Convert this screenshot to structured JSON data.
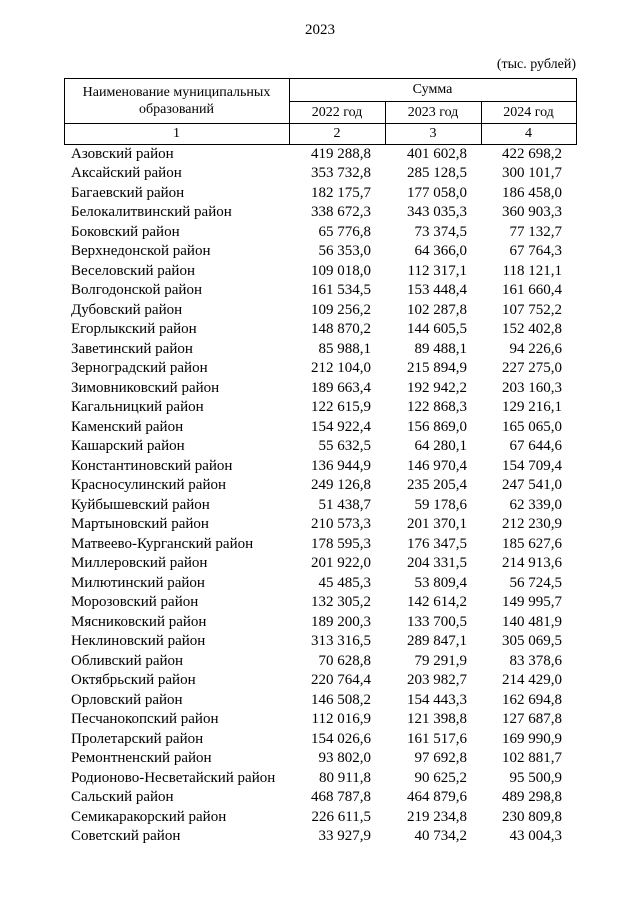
{
  "page": {
    "title": "2023",
    "units_note": "(тыс. рублей)"
  },
  "table": {
    "header": {
      "name_col": "Наименование муниципальных образований",
      "sum_col": "Сумма",
      "year_cols": [
        "2022 год",
        "2023 год",
        "2024 год"
      ],
      "index_row": [
        "1",
        "2",
        "3",
        "4"
      ]
    },
    "rows": [
      {
        "name": "Азовский район",
        "v2022": "419 288,8",
        "v2023": "401 602,8",
        "v2024": "422 698,2"
      },
      {
        "name": "Аксайский район",
        "v2022": "353 732,8",
        "v2023": "285 128,5",
        "v2024": "300 101,7"
      },
      {
        "name": "Багаевский район",
        "v2022": "182 175,7",
        "v2023": "177 058,0",
        "v2024": "186 458,0"
      },
      {
        "name": "Белокалитвинский район",
        "v2022": "338 672,3",
        "v2023": "343 035,3",
        "v2024": "360 903,3"
      },
      {
        "name": "Боковский район",
        "v2022": "65 776,8",
        "v2023": "73 374,5",
        "v2024": "77 132,7"
      },
      {
        "name": "Верхнедонской район",
        "v2022": "56 353,0",
        "v2023": "64 366,0",
        "v2024": "67 764,3"
      },
      {
        "name": "Веселовский район",
        "v2022": "109 018,0",
        "v2023": "112 317,1",
        "v2024": "118 121,1"
      },
      {
        "name": "Волгодонской район",
        "v2022": "161 534,5",
        "v2023": "153 448,4",
        "v2024": "161 660,4"
      },
      {
        "name": "Дубовский район",
        "v2022": "109 256,2",
        "v2023": "102 287,8",
        "v2024": "107 752,2"
      },
      {
        "name": "Егорлыкский район",
        "v2022": "148 870,2",
        "v2023": "144 605,5",
        "v2024": "152 402,8"
      },
      {
        "name": "Заветинский район",
        "v2022": "85 988,1",
        "v2023": "89 488,1",
        "v2024": "94 226,6"
      },
      {
        "name": "Зерноградский район",
        "v2022": "212 104,0",
        "v2023": "215 894,9",
        "v2024": "227 275,0"
      },
      {
        "name": "Зимовниковский район",
        "v2022": "189 663,4",
        "v2023": "192 942,2",
        "v2024": "203 160,3"
      },
      {
        "name": "Кагальницкий район",
        "v2022": "122 615,9",
        "v2023": "122 868,3",
        "v2024": "129 216,1"
      },
      {
        "name": "Каменский район",
        "v2022": "154 922,4",
        "v2023": "156 869,0",
        "v2024": "165 065,0"
      },
      {
        "name": "Кашарский район",
        "v2022": "55 632,5",
        "v2023": "64 280,1",
        "v2024": "67 644,6"
      },
      {
        "name": "Константиновский район",
        "v2022": "136 944,9",
        "v2023": "146 970,4",
        "v2024": "154 709,4"
      },
      {
        "name": "Красносулинский район",
        "v2022": "249 126,8",
        "v2023": "235 205,4",
        "v2024": "247 541,0"
      },
      {
        "name": "Куйбышевский район",
        "v2022": "51 438,7",
        "v2023": "59 178,6",
        "v2024": "62 339,0"
      },
      {
        "name": "Мартыновский район",
        "v2022": "210 573,3",
        "v2023": "201 370,1",
        "v2024": "212 230,9"
      },
      {
        "name": "Матвеево-Курганский район",
        "v2022": "178 595,3",
        "v2023": "176 347,5",
        "v2024": "185 627,6"
      },
      {
        "name": "Миллеровский район",
        "v2022": "201 922,0",
        "v2023": "204 331,5",
        "v2024": "214 913,6"
      },
      {
        "name": "Милютинский район",
        "v2022": "45 485,3",
        "v2023": "53 809,4",
        "v2024": "56 724,5"
      },
      {
        "name": "Морозовский район",
        "v2022": "132 305,2",
        "v2023": "142 614,2",
        "v2024": "149 995,7"
      },
      {
        "name": "Мясниковский район",
        "v2022": "189 200,3",
        "v2023": "133 700,5",
        "v2024": "140 481,9"
      },
      {
        "name": "Неклиновский район",
        "v2022": "313 316,5",
        "v2023": "289 847,1",
        "v2024": "305 069,5"
      },
      {
        "name": "Обливский район",
        "v2022": "70 628,8",
        "v2023": "79 291,9",
        "v2024": "83 378,6"
      },
      {
        "name": "Октябрьский район",
        "v2022": "220 764,4",
        "v2023": "203 982,7",
        "v2024": "214 429,0"
      },
      {
        "name": "Орловский район",
        "v2022": "146 508,2",
        "v2023": "154 443,3",
        "v2024": "162 694,8"
      },
      {
        "name": "Песчанокопский район",
        "v2022": "112 016,9",
        "v2023": "121 398,8",
        "v2024": "127 687,8"
      },
      {
        "name": "Пролетарский район",
        "v2022": "154 026,6",
        "v2023": "161 517,6",
        "v2024": "169 990,9"
      },
      {
        "name": "Ремонтненский район",
        "v2022": "93 802,0",
        "v2023": "97 692,8",
        "v2024": "102 881,7"
      },
      {
        "name": "Родионово-Несветайский район",
        "v2022": "80 911,8",
        "v2023": "90 625,2",
        "v2024": "95 500,9"
      },
      {
        "name": "Сальский район",
        "v2022": "468 787,8",
        "v2023": "464 879,6",
        "v2024": "489 298,8"
      },
      {
        "name": "Семикаракорский район",
        "v2022": "226 611,5",
        "v2023": "219 234,8",
        "v2024": "230 809,8"
      },
      {
        "name": "Советский район",
        "v2022": "33 927,9",
        "v2023": "40 734,2",
        "v2024": "43 004,3"
      }
    ]
  }
}
